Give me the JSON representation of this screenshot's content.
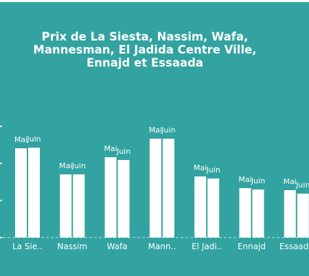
{
  "title_lines": [
    "Prix de La Siesta, Nassim, Wafa,",
    "Mannesman, El Jadida Centre Ville,",
    "Ennajd et Essaada"
  ],
  "colors": {
    "background": "#32a3a0",
    "bars": "#ffffff",
    "text": "#ffffff"
  },
  "chart_data": {
    "type": "bar",
    "title": "Prix de La Siesta, Nassim, Wafa, Mannesman, El Jadida Centre Ville, Ennajd et Essaada",
    "categories": [
      "La Sie..",
      "Nassim",
      "Wafa",
      "Mann..",
      "El Jadi..",
      "Ennajd",
      "Essaada"
    ],
    "series": [
      {
        "name": "Mai",
        "values": [
          130,
          92,
          117,
          144,
          89,
          72,
          69
        ]
      },
      {
        "name": "Juin",
        "values": [
          131,
          92,
          113,
          144,
          86,
          70,
          64
        ]
      }
    ],
    "data_labels": "series_name",
    "ylim": [
      0,
      160
    ],
    "grid": false,
    "legend": "none"
  }
}
